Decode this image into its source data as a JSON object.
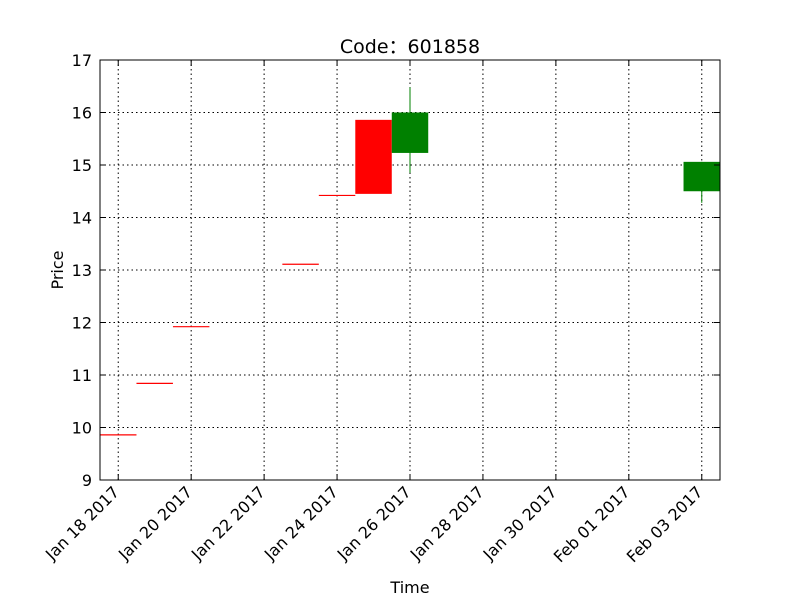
{
  "chart_data": {
    "type": "candlestick",
    "title": "Code：601858",
    "xlabel": "Time",
    "ylabel": "Price",
    "ylim": [
      9,
      17
    ],
    "xlim": [
      "2017-01-17T12:00",
      "2017-02-03T12:00"
    ],
    "grid": true,
    "yticks": [
      "9",
      "10",
      "11",
      "12",
      "13",
      "14",
      "15",
      "16",
      "17"
    ],
    "xticks": [
      {
        "date": "2017-01-18",
        "label": "Jan 18 2017"
      },
      {
        "date": "2017-01-20",
        "label": "Jan 20 2017"
      },
      {
        "date": "2017-01-22",
        "label": "Jan 22 2017"
      },
      {
        "date": "2017-01-24",
        "label": "Jan 24 2017"
      },
      {
        "date": "2017-01-26",
        "label": "Jan 26 2017"
      },
      {
        "date": "2017-01-28",
        "label": "Jan 28 2017"
      },
      {
        "date": "2017-01-30",
        "label": "Jan 30 2017"
      },
      {
        "date": "2017-02-01",
        "label": "Feb 01 2017"
      },
      {
        "date": "2017-02-03",
        "label": "Feb 03 2017"
      }
    ],
    "candles": [
      {
        "date": "2017-01-18",
        "open": 9.86,
        "close": 9.86,
        "high": 9.86,
        "low": 9.86
      },
      {
        "date": "2017-01-19",
        "open": 10.84,
        "close": 10.84,
        "high": 10.84,
        "low": 10.84
      },
      {
        "date": "2017-01-20",
        "open": 11.92,
        "close": 11.92,
        "high": 11.92,
        "low": 11.92
      },
      {
        "date": "2017-01-23",
        "open": 13.11,
        "close": 13.11,
        "high": 13.11,
        "low": 13.11
      },
      {
        "date": "2017-01-24",
        "open": 14.42,
        "close": 14.42,
        "high": 14.42,
        "low": 14.42
      },
      {
        "date": "2017-01-25",
        "open": 14.45,
        "close": 15.86,
        "high": 15.86,
        "low": 14.45
      },
      {
        "date": "2017-01-26",
        "open": 16.0,
        "close": 15.23,
        "high": 16.48,
        "low": 14.85
      },
      {
        "date": "2017-02-03",
        "open": 15.06,
        "close": 14.5,
        "high": 15.06,
        "low": 14.28
      }
    ],
    "colors": {
      "up": "#ff0000",
      "down": "#008000",
      "frame": "#000000"
    }
  }
}
